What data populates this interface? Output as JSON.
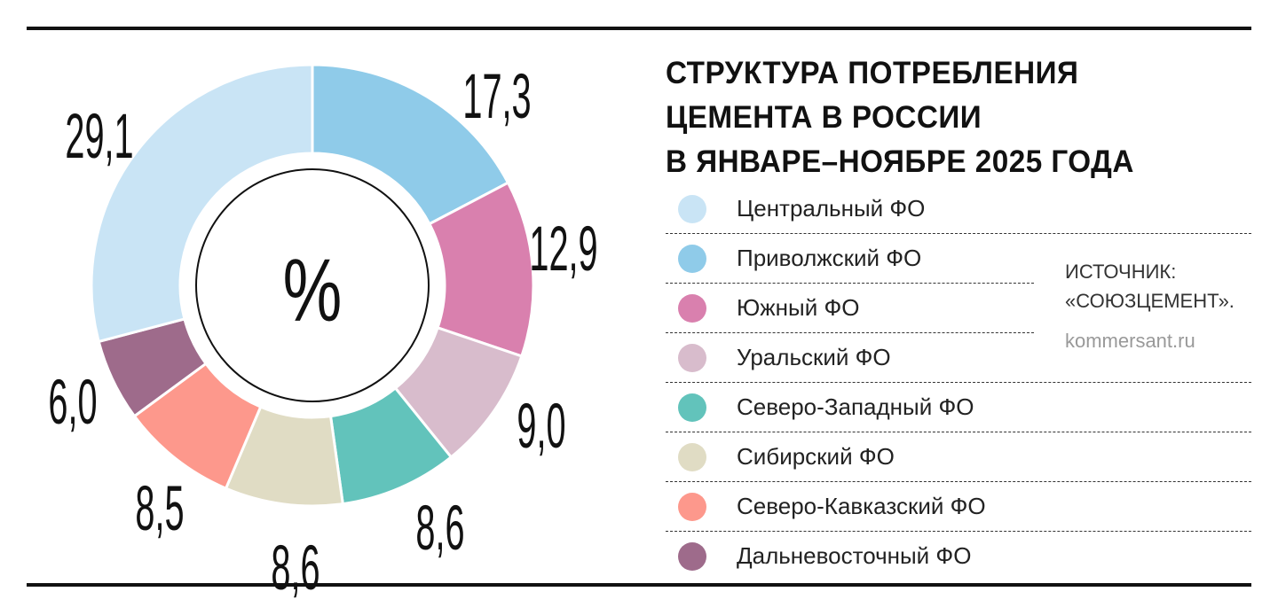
{
  "title": [
    "СТРУКТУРА ПОТРЕБЛЕНИЯ",
    "ЦЕМЕНТА В РОССИИ",
    "В ЯНВАРЕ–НОЯБРЕ 2025 ГОДА"
  ],
  "source": {
    "label": "ИСТОЧНИК:",
    "name": "«СОЮЗЦЕМЕНТ».",
    "site": "kommersant.ru"
  },
  "chart_data": {
    "type": "pie",
    "subtype": "donut",
    "title": "СТРУКТУРА ПОТРЕБЛЕНИЯ ЦЕМЕНТА В РОССИИ В ЯНВАРЕ–НОЯБРЕ 2025 ГОДА",
    "center_label": "%",
    "unit": "%",
    "slices": [
      {
        "name": "Приволжский ФО",
        "value": 17.3,
        "label": "17,3",
        "color": "#8fcbe9"
      },
      {
        "name": "Южный ФО",
        "value": 12.9,
        "label": "12,9",
        "color": "#d980ae"
      },
      {
        "name": "Уральский ФО",
        "value": 9.0,
        "label": "9,0",
        "color": "#d8bccc"
      },
      {
        "name": "Северо-Западный ФО",
        "value": 8.6,
        "label": "8,6",
        "color": "#62c3bb"
      },
      {
        "name": "Сибирский ФО",
        "value": 8.6,
        "label": "8,6",
        "color": "#e0dcc4"
      },
      {
        "name": "Северо-Кавказский ФО",
        "value": 8.5,
        "label": "8,5",
        "color": "#fd988c"
      },
      {
        "name": "Дальневосточный ФО",
        "value": 6.0,
        "label": "6,0",
        "color": "#9e6b8b"
      },
      {
        "name": "Центральный ФО",
        "value": 29.1,
        "label": "29,1",
        "color": "#c9e4f5"
      }
    ],
    "legend": [
      {
        "name": "Центральный ФО",
        "color": "#c9e4f5"
      },
      {
        "name": "Приволжский ФО",
        "color": "#8fcbe9"
      },
      {
        "name": "Южный ФО",
        "color": "#d980ae"
      },
      {
        "name": "Уральский ФО",
        "color": "#d8bccc"
      },
      {
        "name": "Северо-Западный ФО",
        "color": "#62c3bb"
      },
      {
        "name": "Сибирский ФО",
        "color": "#e0dcc4"
      },
      {
        "name": "Северо-Кавказский ФО",
        "color": "#fd988c"
      },
      {
        "name": "Дальневосточный ФО",
        "color": "#9e6b8b"
      }
    ],
    "legend_placement": "right"
  }
}
